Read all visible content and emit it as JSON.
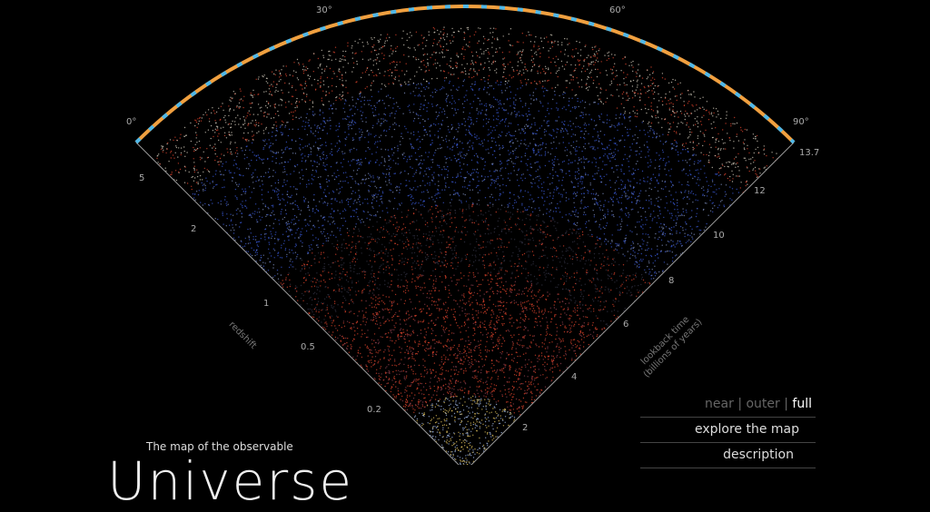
{
  "angles": [
    "0°",
    "30°",
    "60°",
    "90°"
  ],
  "redshift": {
    "label": "redshift",
    "ticks": [
      "5",
      "2",
      "1",
      "0.5",
      "0.2"
    ]
  },
  "lookback": {
    "label": "lookback time",
    "unit": "(billions of years)",
    "ticks": [
      "13.7",
      "12",
      "10",
      "8",
      "6",
      "4",
      "2"
    ]
  },
  "menu": {
    "near": "near",
    "outer": "outer",
    "full": "full",
    "sep": "|",
    "explore": "explore the map",
    "description": "description"
  },
  "title": {
    "small": "The map of the observable",
    "big": "Universe"
  },
  "colors": {
    "near": "#e8c860",
    "mid": "#e0442c",
    "far": "#3a5ad8",
    "edge": "#d8d0c0",
    "arc_orange": "#f0a040",
    "arc_blue": "#50b8e8"
  }
}
